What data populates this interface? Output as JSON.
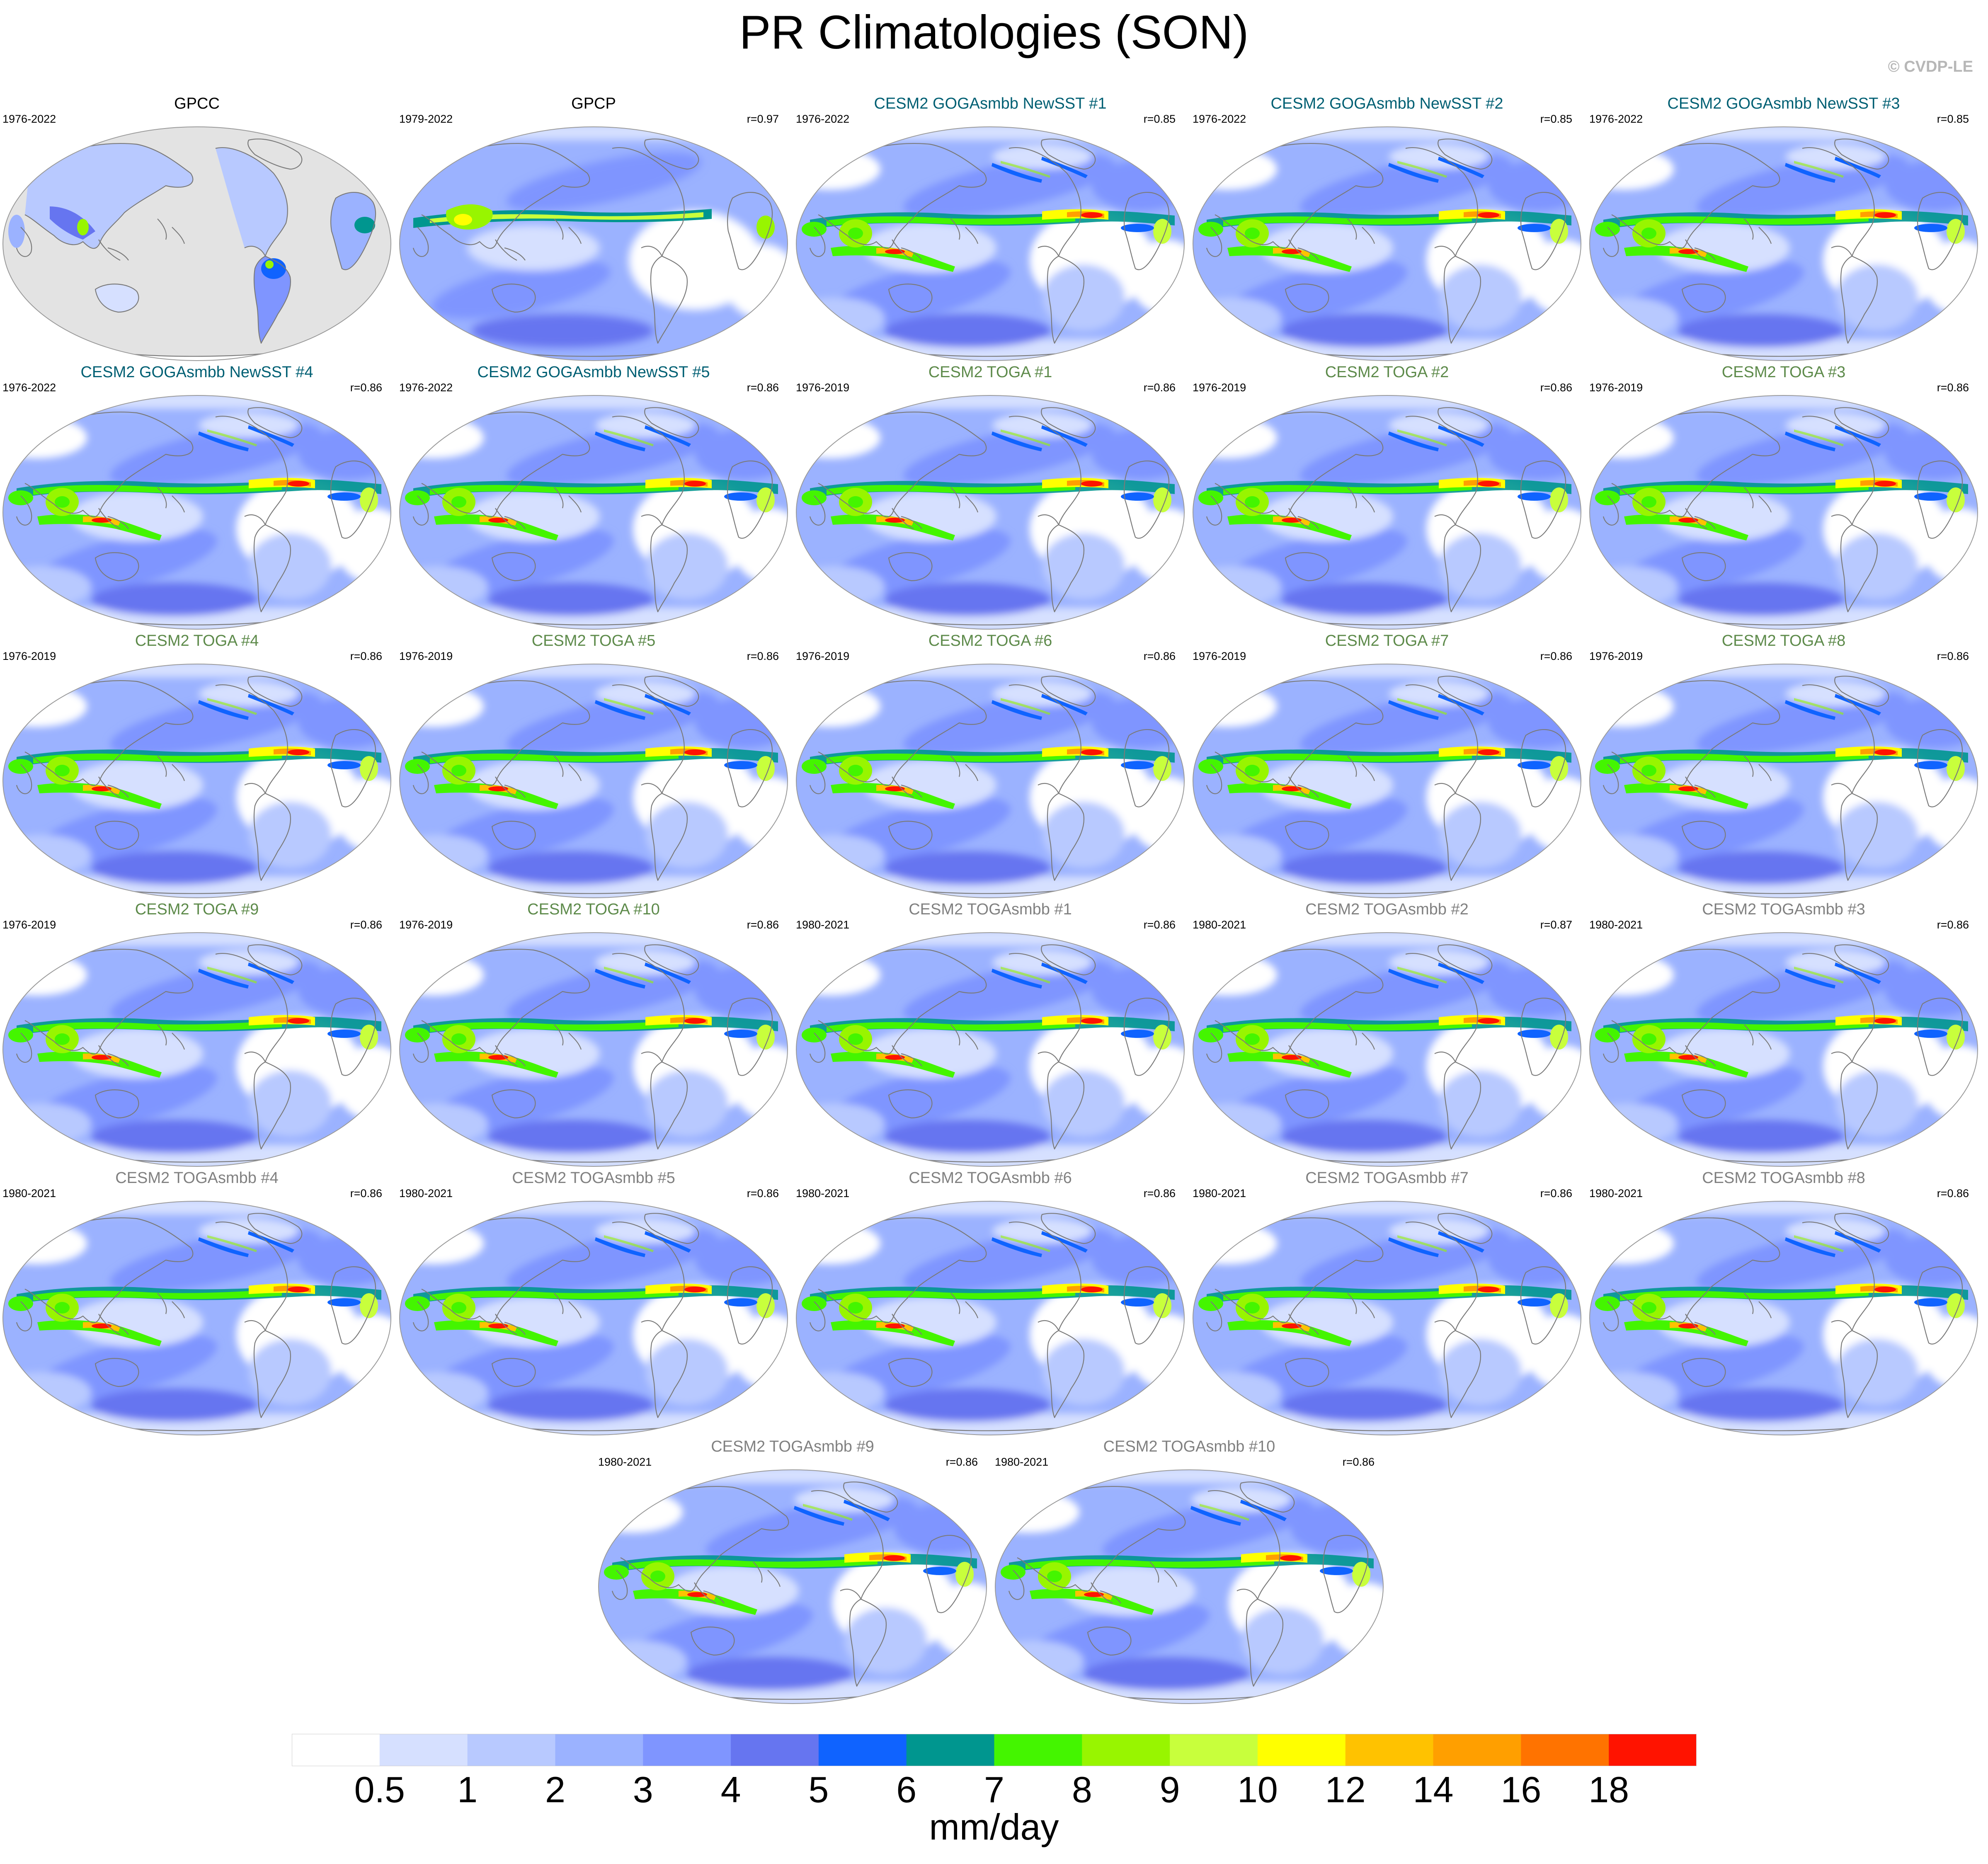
{
  "title": "PR Climatologies (SON)",
  "watermark": "© CVDP-LE",
  "colors": {
    "title_reference": "#000000",
    "title_goga_newsst": "#005f73",
    "title_toga": "#5d8a4a",
    "title_togasmbb": "#808080",
    "land_gray": "#e3e3e3",
    "coast": "#7a7a7a"
  },
  "panels": [
    {
      "title": "GPCC",
      "period": "1976-2022",
      "r": "",
      "group": "reference",
      "map": "land-only"
    },
    {
      "title": "GPCP",
      "period": "1979-2022",
      "r": "r=0.97",
      "group": "reference",
      "map": "global-obs"
    },
    {
      "title": "CESM2 GOGAsmbb NewSST #1",
      "period": "1976-2022",
      "r": "r=0.85",
      "group": "goga_newsst",
      "map": "model"
    },
    {
      "title": "CESM2 GOGAsmbb NewSST #2",
      "period": "1976-2022",
      "r": "r=0.85",
      "group": "goga_newsst",
      "map": "model"
    },
    {
      "title": "CESM2 GOGAsmbb NewSST #3",
      "period": "1976-2022",
      "r": "r=0.85",
      "group": "goga_newsst",
      "map": "model"
    },
    {
      "title": "CESM2 GOGAsmbb NewSST #4",
      "period": "1976-2022",
      "r": "r=0.86",
      "group": "goga_newsst",
      "map": "model"
    },
    {
      "title": "CESM2 GOGAsmbb NewSST #5",
      "period": "1976-2022",
      "r": "r=0.86",
      "group": "goga_newsst",
      "map": "model"
    },
    {
      "title": "CESM2 TOGA #1",
      "period": "1976-2019",
      "r": "r=0.86",
      "group": "toga",
      "map": "model"
    },
    {
      "title": "CESM2 TOGA #2",
      "period": "1976-2019",
      "r": "r=0.86",
      "group": "toga",
      "map": "model"
    },
    {
      "title": "CESM2 TOGA #3",
      "period": "1976-2019",
      "r": "r=0.86",
      "group": "toga",
      "map": "model"
    },
    {
      "title": "CESM2 TOGA #4",
      "period": "1976-2019",
      "r": "r=0.86",
      "group": "toga",
      "map": "model"
    },
    {
      "title": "CESM2 TOGA #5",
      "period": "1976-2019",
      "r": "r=0.86",
      "group": "toga",
      "map": "model"
    },
    {
      "title": "CESM2 TOGA #6",
      "period": "1976-2019",
      "r": "r=0.86",
      "group": "toga",
      "map": "model"
    },
    {
      "title": "CESM2 TOGA #7",
      "period": "1976-2019",
      "r": "r=0.86",
      "group": "toga",
      "map": "model"
    },
    {
      "title": "CESM2 TOGA #8",
      "period": "1976-2019",
      "r": "r=0.86",
      "group": "toga",
      "map": "model"
    },
    {
      "title": "CESM2 TOGA #9",
      "period": "1976-2019",
      "r": "r=0.86",
      "group": "toga",
      "map": "model"
    },
    {
      "title": "CESM2 TOGA #10",
      "period": "1976-2019",
      "r": "r=0.86",
      "group": "toga",
      "map": "model"
    },
    {
      "title": "CESM2 TOGAsmbb #1",
      "period": "1980-2021",
      "r": "r=0.86",
      "group": "togasmbb",
      "map": "model"
    },
    {
      "title": "CESM2 TOGAsmbb #2",
      "period": "1980-2021",
      "r": "r=0.87",
      "group": "togasmbb",
      "map": "model"
    },
    {
      "title": "CESM2 TOGAsmbb #3",
      "period": "1980-2021",
      "r": "r=0.86",
      "group": "togasmbb",
      "map": "model"
    },
    {
      "title": "CESM2 TOGAsmbb #4",
      "period": "1980-2021",
      "r": "r=0.86",
      "group": "togasmbb",
      "map": "model"
    },
    {
      "title": "CESM2 TOGAsmbb #5",
      "period": "1980-2021",
      "r": "r=0.86",
      "group": "togasmbb",
      "map": "model"
    },
    {
      "title": "CESM2 TOGAsmbb #6",
      "period": "1980-2021",
      "r": "r=0.86",
      "group": "togasmbb",
      "map": "model"
    },
    {
      "title": "CESM2 TOGAsmbb #7",
      "period": "1980-2021",
      "r": "r=0.86",
      "group": "togasmbb",
      "map": "model"
    },
    {
      "title": "CESM2 TOGAsmbb #8",
      "period": "1980-2021",
      "r": "r=0.86",
      "group": "togasmbb",
      "map": "model"
    },
    {
      "title": "CESM2 TOGAsmbb #9",
      "period": "1980-2021",
      "r": "r=0.86",
      "group": "togasmbb",
      "map": "model"
    },
    {
      "title": "CESM2 TOGAsmbb #10",
      "period": "1980-2021",
      "r": "r=0.86",
      "group": "togasmbb",
      "map": "model"
    }
  ],
  "colorbar": {
    "labels": [
      "0.5",
      "1",
      "2",
      "3",
      "4",
      "5",
      "6",
      "7",
      "8",
      "9",
      "10",
      "12",
      "14",
      "16",
      "18"
    ],
    "colors": [
      "#ffffff",
      "#d6e0ff",
      "#b8c9ff",
      "#9bb2ff",
      "#7f95ff",
      "#6675f0",
      "#0f63ff",
      "#00968f",
      "#44f500",
      "#98f500",
      "#c8ff3c",
      "#ffff00",
      "#ffc200",
      "#ff9f00",
      "#ff7300",
      "#ff1300"
    ],
    "units": "mm/day"
  }
}
